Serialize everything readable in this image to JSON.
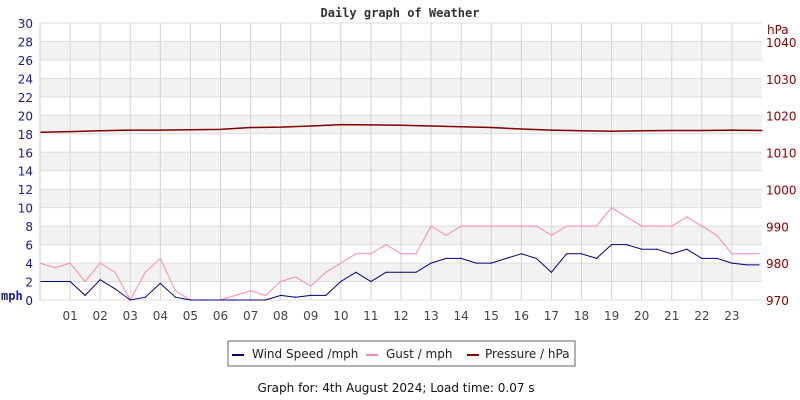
{
  "chart_data": {
    "type": "line",
    "title": "Daily graph of Weather",
    "left_axis": {
      "label": "mph",
      "range": [
        0,
        30
      ],
      "ticks": [
        "0",
        "2",
        "4",
        "6",
        "8",
        "10",
        "12",
        "14",
        "16",
        "18",
        "20",
        "22",
        "24",
        "26",
        "28",
        "30"
      ],
      "color": "#1a1a8c"
    },
    "right_axis": {
      "label": "hPa",
      "range": [
        970,
        1040
      ],
      "ticks": [
        "970",
        "980",
        "990",
        "1000",
        "1010",
        "1020",
        "1030",
        "1040"
      ],
      "color": "#8b0000"
    },
    "x_axis": {
      "range": [
        0,
        24
      ],
      "ticks": [
        "01",
        "02",
        "03",
        "04",
        "05",
        "06",
        "07",
        "08",
        "09",
        "10",
        "11",
        "12",
        "13",
        "14",
        "15",
        "16",
        "17",
        "18",
        "19",
        "20",
        "21",
        "22",
        "23"
      ]
    },
    "grid": true,
    "legend_placement": "bottom",
    "series": [
      {
        "name": "Wind Speed /mph",
        "axis": "left",
        "color": "#000080",
        "x": [
          0,
          0.5,
          1,
          1.5,
          2,
          2.5,
          3,
          3.5,
          4,
          4.5,
          5,
          5.5,
          6,
          6.5,
          7,
          7.5,
          8,
          8.5,
          9,
          9.5,
          10,
          10.5,
          11,
          11.5,
          12,
          12.5,
          13,
          13.5,
          14,
          14.5,
          15,
          15.5,
          16,
          16.5,
          17,
          17.5,
          18,
          18.5,
          19,
          19.5,
          20,
          20.5,
          21,
          21.5,
          22,
          22.5,
          23,
          23.5,
          23.9
        ],
        "values": [
          2,
          2,
          2,
          0.5,
          2.2,
          1.2,
          0,
          0.3,
          1.8,
          0.3,
          0,
          0,
          0,
          0,
          0,
          0,
          0.5,
          0.3,
          0.5,
          0.5,
          2,
          3,
          2,
          3,
          3,
          3,
          4,
          4.5,
          4.5,
          4,
          4,
          4.5,
          5,
          4.5,
          3,
          5,
          5,
          4.5,
          6,
          6,
          5.5,
          5.5,
          5,
          5.5,
          4.5,
          4.5,
          4,
          3.8,
          3.8
        ]
      },
      {
        "name": "Gust / mph",
        "axis": "left",
        "color": "#ff88aa",
        "x": [
          0,
          0.5,
          1,
          1.5,
          2,
          2.5,
          3,
          3.5,
          4,
          4.5,
          5,
          5.5,
          6,
          6.5,
          7,
          7.5,
          8,
          8.5,
          9,
          9.5,
          10,
          10.5,
          11,
          11.5,
          12,
          12.5,
          13,
          13.5,
          14,
          14.5,
          15,
          15.5,
          16,
          16.5,
          17,
          17.5,
          18,
          18.5,
          19,
          19.5,
          20,
          20.5,
          21,
          21.5,
          22,
          22.5,
          23,
          23.5,
          23.9
        ],
        "values": [
          4,
          3.5,
          4,
          2,
          4,
          3,
          0,
          3,
          4.5,
          1,
          0,
          0,
          0,
          0.5,
          1,
          0.5,
          2,
          2.5,
          1.5,
          3,
          4,
          5,
          5,
          6,
          5,
          5,
          8,
          7,
          8,
          8,
          8,
          8,
          8,
          8,
          7,
          8,
          8,
          8,
          10,
          9,
          8,
          8,
          8,
          9,
          8,
          7,
          5,
          5,
          5
        ]
      },
      {
        "name": "Pressure / hPa",
        "axis": "right",
        "color": "#800000",
        "x": [
          0,
          1,
          2,
          3,
          4,
          5,
          6,
          7,
          8,
          9,
          10,
          11,
          12,
          13,
          14,
          15,
          16,
          17,
          18,
          19,
          20,
          21,
          22,
          23,
          24
        ],
        "values": [
          1015.5,
          1015.7,
          1015.9,
          1016.1,
          1016.1,
          1016.2,
          1016.3,
          1016.8,
          1016.9,
          1017.2,
          1017.6,
          1017.5,
          1017.4,
          1017.2,
          1017.0,
          1016.8,
          1016.4,
          1016.1,
          1015.9,
          1015.8,
          1015.9,
          1016.0,
          1016.0,
          1016.1,
          1016.0
        ]
      }
    ]
  },
  "footer": "Graph for: 4th August 2024; Load time: 0.07 s"
}
